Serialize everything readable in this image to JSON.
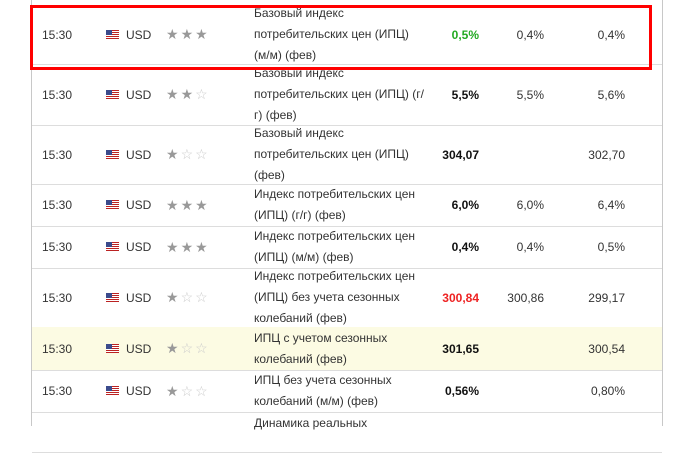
{
  "rows": [
    {
      "time": "15:30",
      "currency": "USD",
      "importance": 3,
      "event": "Базовый индекс потребительских цен (ИПЦ) (м/м) (фев)",
      "actual": "0,5%",
      "actual_color": "green",
      "forecast": "0,4%",
      "previous": "0,4%",
      "top": 5,
      "h": 59
    },
    {
      "time": "15:30",
      "currency": "USD",
      "importance": 2,
      "event": "Базовый индекс потребительских цен (ИПЦ) (г/г) (фев)",
      "actual": "5,5%",
      "actual_color": "",
      "forecast": "5,5%",
      "previous": "5,6%",
      "top": 64,
      "h": 61
    },
    {
      "time": "15:30",
      "currency": "USD",
      "importance": 1,
      "event": "Базовый индекс потребительских цен (ИПЦ) (фев)",
      "actual": "304,07",
      "actual_color": "",
      "forecast": "",
      "previous": "302,70",
      "top": 125,
      "h": 59
    },
    {
      "time": "15:30",
      "currency": "USD",
      "importance": 3,
      "event": "Индекс потребительских цен (ИПЦ) (г/г) (фев)",
      "actual": "6,0%",
      "actual_color": "",
      "forecast": "6,0%",
      "previous": "6,4%",
      "top": 184,
      "h": 42
    },
    {
      "time": "15:30",
      "currency": "USD",
      "importance": 3,
      "event": "Индекс потребительских цен (ИПЦ) (м/м) (фев)",
      "actual": "0,4%",
      "actual_color": "",
      "forecast": "0,4%",
      "previous": "0,5%",
      "top": 226,
      "h": 42
    },
    {
      "time": "15:30",
      "currency": "USD",
      "importance": 1,
      "event": "Индекс потребительских цен (ИПЦ) без учета сезонных колебаний (фев)",
      "actual": "300,84",
      "actual_color": "red",
      "forecast": "300,86",
      "previous": "299,17",
      "top": 268,
      "h": 59
    },
    {
      "time": "15:30",
      "currency": "USD",
      "importance": 1,
      "event": "ИПЦ с учетом сезонных колебаний (фев)",
      "actual": "301,65",
      "actual_color": "",
      "forecast": "",
      "previous": "300,54",
      "top": 327,
      "h": 43,
      "highlight": true
    },
    {
      "time": "15:30",
      "currency": "USD",
      "importance": 1,
      "event": "ИПЦ без учета сезонных колебаний (м/м) (фев)",
      "actual": "0,56%",
      "actual_color": "",
      "forecast": "",
      "previous": "0,80%",
      "top": 370,
      "h": 42
    },
    {
      "time": "",
      "currency": "",
      "importance": 0,
      "event": "Динамика реальных",
      "actual": "",
      "actual_color": "",
      "forecast": "",
      "previous": "",
      "top": 412,
      "h": 40,
      "partial": true
    }
  ],
  "colors": {
    "highlight_box": "#ff0000",
    "actual_green": "#22aa22",
    "actual_red": "#ee2222",
    "row_highlight": "#fcfbe3"
  }
}
